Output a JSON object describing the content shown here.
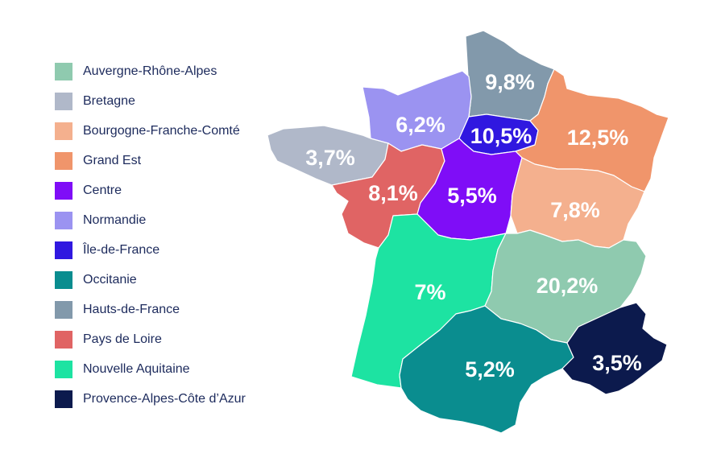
{
  "regions": [
    {
      "id": "auvergne-rhone-alpes",
      "name": "Auvergne-Rhône-Alpes",
      "color": "#8fcaaf",
      "value": "20,2%"
    },
    {
      "id": "bretagne",
      "name": "Bretagne",
      "color": "#b0b8c9",
      "value": "3,7%"
    },
    {
      "id": "bourgogne-franche-comte",
      "name": "Bourgogne-Franche-Comté",
      "color": "#f4b08e",
      "value": "7,8%"
    },
    {
      "id": "grand-est",
      "name": "Grand Est",
      "color": "#f0956b",
      "value": "12,5%"
    },
    {
      "id": "centre",
      "name": "Centre",
      "color": "#7f0df7",
      "value": "5,5%"
    },
    {
      "id": "normandie",
      "name": "Normandie",
      "color": "#9b93f1",
      "value": "6,2%"
    },
    {
      "id": "ile-de-france",
      "name": "Île-de-France",
      "color": "#3018e0",
      "value": "10,5%"
    },
    {
      "id": "occitanie",
      "name": "Occitanie",
      "color": "#0a8d8f",
      "value": "5,2%"
    },
    {
      "id": "hauts-de-france",
      "name": "Hauts-de-France",
      "color": "#8299ab",
      "value": "9,8%"
    },
    {
      "id": "pays-de-loire",
      "name": "Pays de Loire",
      "color": "#e06464",
      "value": "8,1%"
    },
    {
      "id": "nouvelle-aquitaine",
      "name": "Nouvelle Aquitaine",
      "color": "#1de3a2",
      "value": "7%"
    },
    {
      "id": "provence-alpes-cote-d-azur",
      "name": "Provence-Alpes-Côte d’Azur",
      "color": "#0c1a4d",
      "value": "3,5%"
    }
  ]
}
